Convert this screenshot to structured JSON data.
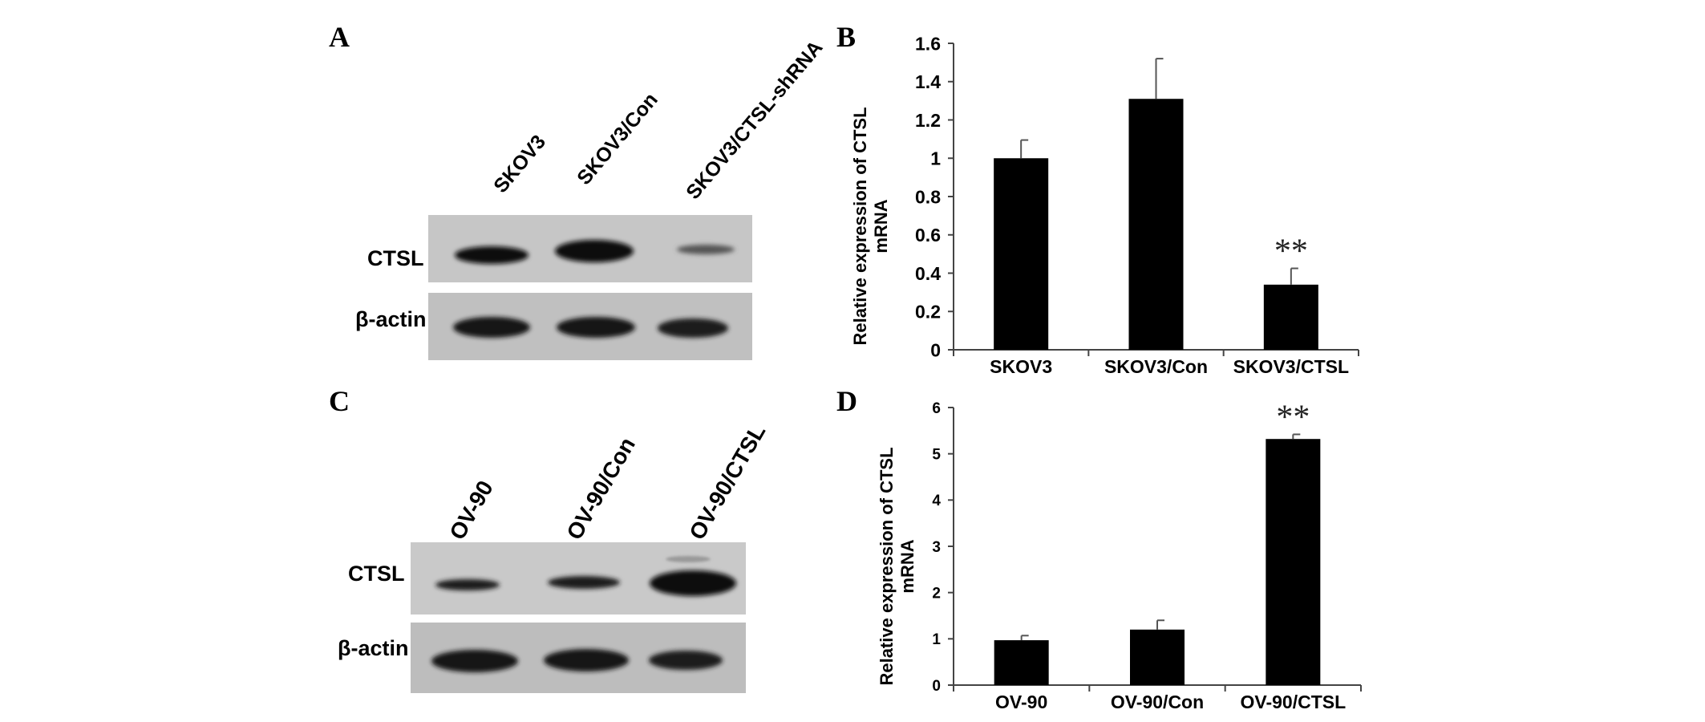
{
  "panels": {
    "A": {
      "letter": "A",
      "lanes": [
        "SKOV3",
        "SKOV3/Con",
        "SKOV3/CTSL-shRNA"
      ],
      "rows": [
        "CTSL",
        "β-actin"
      ]
    },
    "C": {
      "letter": "C",
      "lanes": [
        "OV-90",
        "OV-90/Con",
        "OV-90/CTSL"
      ],
      "rows": [
        "CTSL",
        "β-actin"
      ]
    }
  },
  "chart_data": [
    {
      "panel": "B",
      "type": "bar",
      "categories": [
        "SKOV3",
        "SKOV3/Con",
        "SKOV3/CTSL"
      ],
      "values": [
        1.0,
        1.31,
        0.34
      ],
      "errors": [
        0.095,
        0.21,
        0.085
      ],
      "significance": [
        "",
        "",
        "**"
      ],
      "ylabel_line1": "Relative expression of CTSL",
      "ylabel_line2": "mRNA",
      "ylim": [
        0,
        1.6
      ],
      "yticks": [
        "0",
        "0.2",
        "0.4",
        "0.6",
        "0.8",
        "1",
        "1.2",
        "1.4",
        "1.6"
      ],
      "bar_color": "#000000"
    },
    {
      "panel": "D",
      "type": "bar",
      "categories": [
        "OV-90",
        "OV-90/Con",
        "OV-90/CTSL"
      ],
      "values": [
        0.97,
        1.2,
        5.32
      ],
      "errors": [
        0.1,
        0.2,
        0.1
      ],
      "significance": [
        "",
        "",
        "**"
      ],
      "ylabel_line1": "Relative expression of CTSL",
      "ylabel_line2": "mRNA",
      "ylim": [
        0,
        6
      ],
      "yticks": [
        "0",
        "1",
        "2",
        "3",
        "4",
        "5",
        "6"
      ],
      "bar_color": "#000000"
    }
  ],
  "panel_letters": {
    "B": "B",
    "D": "D"
  }
}
